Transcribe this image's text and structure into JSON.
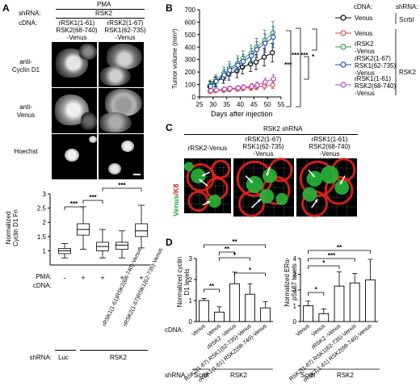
{
  "panelA": {
    "letter": "A",
    "pma": "PMA",
    "shrna_label": "shRNA:",
    "shrna_value": "RSK2",
    "cdna_label": "cDNA:",
    "col1": [
      "rRSK1(1-61)",
      "RSK2(68-740)",
      "-Venus"
    ],
    "col2": [
      "rRSK2(1-67)",
      "RSK1(62-735)",
      "-Venus"
    ],
    "row1": [
      "anti-",
      "Cyclin D1"
    ],
    "row2": [
      "anti-",
      "Venus"
    ],
    "row3": "Hoechst",
    "box": {
      "ylabel": [
        "Normalized",
        "Cyclin D1 Fn"
      ],
      "yticks": [
        "1",
        "1.5",
        "2",
        "2.5",
        "3"
      ],
      "sig": [
        "***",
        "***",
        "***"
      ],
      "pma_label": "PMA:",
      "pma_values": [
        "-",
        "+",
        "+",
        "+",
        "+"
      ],
      "cdna_label": "cDNA:",
      "cdna_values": [
        "rRSK1(1-61)RSK2(68-740)-Venus",
        "rRSK2(1-67)RSK1(62-735)-Venus"
      ],
      "shrna_label": "shRNA:",
      "shrna_luc": "Luc",
      "shrna_rsk2": "RSK2"
    }
  },
  "panelB": {
    "letter": "B",
    "ylabel": "Tumor volume (mm³)",
    "xlabel": "Days after injection",
    "sig": [
      "***",
      "***",
      "***",
      "***",
      "*"
    ],
    "legend_header_cdna": "cDNA:",
    "legend_header_shrna": "shRNA:",
    "legend": [
      {
        "label": "Venus",
        "color": "#000000"
      },
      {
        "label": "Venus",
        "color": "#e2453b"
      },
      {
        "label": "rRSK2 -Venus",
        "color": "#2b9a3a"
      },
      {
        "label": "rRSK2(1-67) RSK1(62-735) -Venus",
        "color": "#2448b8"
      },
      {
        "label": "rRSK1(1-61) RSK2(68-740) -Venus",
        "color": "#b04bb8"
      }
    ],
    "shrna_groups": [
      "Scrbl",
      "RSK2"
    ]
  },
  "chart_data": [
    {
      "type": "line",
      "title": "",
      "xlabel": "Days after injection",
      "ylabel": "Tumor volume (mm³)",
      "xlim": [
        25,
        55
      ],
      "ylim": [
        0,
        700
      ],
      "xticks": [
        "25",
        "30",
        "35",
        "40",
        "45",
        "50",
        "55"
      ],
      "yticks": [
        "0",
        "100",
        "200",
        "300",
        "400",
        "500",
        "600",
        "700"
      ],
      "x": [
        29,
        31,
        34,
        36,
        39,
        41,
        44,
        46,
        49,
        52
      ],
      "series": [
        {
          "name": "Venus (Scrbl)",
          "color": "#000000",
          "values": [
            85,
            120,
            155,
            185,
            210,
            240,
            265,
            280,
            320,
            355
          ],
          "err": [
            40,
            40,
            45,
            50,
            55,
            55,
            60,
            60,
            70,
            75
          ]
        },
        {
          "name": "Venus (RSK2)",
          "color": "#e2453b",
          "values": [
            45,
            50,
            55,
            60,
            65,
            70,
            75,
            80,
            88,
            95
          ],
          "err": [
            15,
            15,
            18,
            18,
            20,
            20,
            22,
            22,
            25,
            28
          ]
        },
        {
          "name": "rRSK2-Venus",
          "color": "#2b9a3a",
          "values": [
            95,
            135,
            190,
            230,
            270,
            310,
            350,
            400,
            455,
            515
          ],
          "err": [
            40,
            45,
            50,
            55,
            60,
            60,
            65,
            70,
            80,
            90
          ]
        },
        {
          "name": "rRSK2(1-67)RSK1(62-735)-Venus",
          "color": "#2448b8",
          "values": [
            85,
            125,
            175,
            215,
            255,
            285,
            330,
            380,
            430,
            480
          ],
          "err": [
            35,
            40,
            45,
            50,
            55,
            55,
            60,
            65,
            75,
            85
          ]
        },
        {
          "name": "rRSK1(1-61)RSK2(68-740)-Venus",
          "color": "#b04bb8",
          "values": [
            50,
            55,
            62,
            68,
            72,
            78,
            85,
            95,
            120,
            145
          ],
          "err": [
            15,
            15,
            18,
            18,
            20,
            20,
            22,
            25,
            30,
            35
          ]
        }
      ]
    },
    {
      "type": "bar",
      "title": "",
      "ylabel": "Normalized cyclin D1 levels",
      "categories": [
        "Venus",
        "Venus",
        "rRSK2-Venus",
        "RSK2(1-67)RSK1(62-735)-Venus",
        "rRSK1(1-61)RSK2(68-740)-Venus"
      ],
      "values": [
        1.0,
        0.45,
        1.8,
        1.3,
        0.65
      ],
      "err": [
        0.1,
        0.25,
        0.55,
        0.5,
        0.3
      ],
      "ylim": [
        0,
        3
      ],
      "yticks": [
        "0",
        "1",
        "2",
        "3"
      ]
    },
    {
      "type": "bar",
      "title": "",
      "ylabel": "Normalized ERα-pS167 levels",
      "categories": [
        "Venus",
        "Venus",
        "rRSK2-Venus",
        "RSK2(1-67)RSK1(62-735)-Venus",
        "rRSK1(1-61)RSK2(68-740)-Venus"
      ],
      "values": [
        1.0,
        0.5,
        2.25,
        2.45,
        2.65
      ],
      "err": [
        0.3,
        0.3,
        0.9,
        0.6,
        1.3
      ],
      "ylim": [
        0,
        4
      ],
      "yticks": [
        "0",
        "1",
        "2",
        "3",
        "4"
      ]
    },
    {
      "type": "box",
      "title": "",
      "ylabel": "Normalized Cyclin D1 Fn",
      "ylim": [
        0.5,
        3
      ],
      "yticks": [
        "1",
        "1.5",
        "2",
        "2.5",
        "3"
      ],
      "boxes": [
        {
          "q1": 0.9,
          "median": 1.0,
          "q3": 1.08,
          "min": 0.75,
          "max": 1.25
        },
        {
          "q1": 1.55,
          "median": 1.75,
          "q3": 1.95,
          "min": 1.05,
          "max": 2.55
        },
        {
          "q1": 1.0,
          "median": 1.15,
          "q3": 1.3,
          "min": 0.75,
          "max": 1.75
        },
        {
          "q1": 1.05,
          "median": 1.2,
          "q3": 1.3,
          "min": 0.75,
          "max": 1.7
        },
        {
          "q1": 1.5,
          "median": 1.7,
          "q3": 1.95,
          "min": 1.1,
          "max": 2.6
        }
      ]
    }
  ],
  "panelC": {
    "letter": "C",
    "header": "RSK2 shRNA",
    "img1": [
      "rRSK2-Venus"
    ],
    "img2": [
      "rRSK2(1-67)",
      "RSK1(62-735)",
      "-Venus"
    ],
    "img3": [
      "rRSK1(1-61)",
      "RSK2(68-740)",
      "-Venus"
    ],
    "side_venus": "Venus",
    "side_k8": "/K8"
  },
  "panelD": {
    "letter": "D",
    "sig_left": [
      "**",
      "**",
      "*",
      "**",
      "*"
    ],
    "sig_right": [
      "**",
      "***",
      "*",
      "*"
    ],
    "cdna_label": "cDNA:",
    "xcats": [
      "Venus",
      "Venus",
      "rRSK2 -Venus",
      "RSK2(1-67) RSK1(62-735)-Venus",
      "rRSK1(1-61) RSK2(68-740)-Venus"
    ],
    "shrna_label": "shRNA:",
    "scrbl": "Scrbl",
    "rsk2": "RSK2"
  }
}
